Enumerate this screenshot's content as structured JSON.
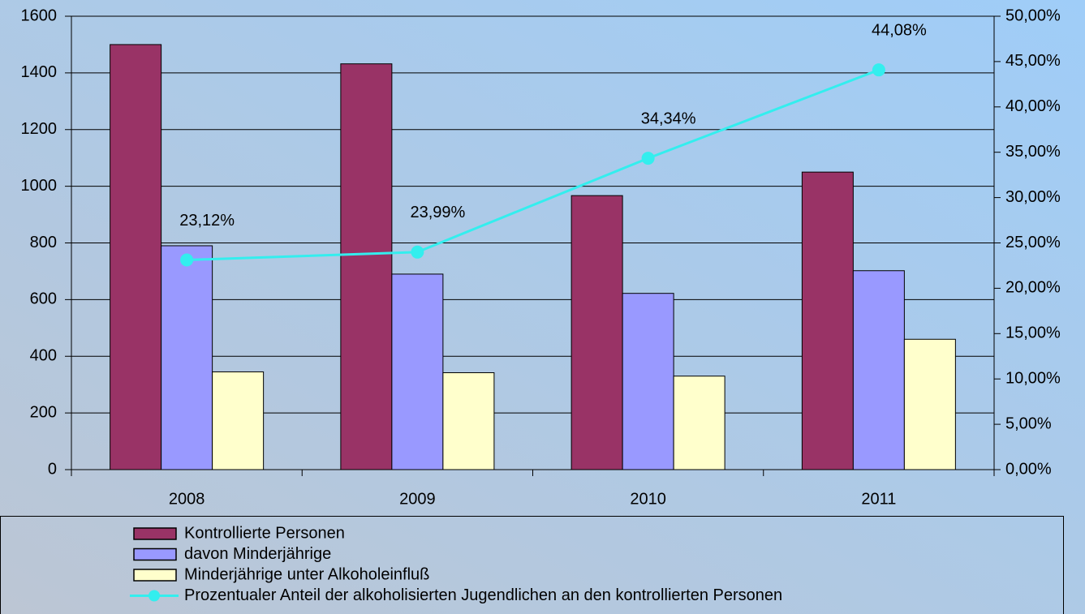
{
  "chart_data": {
    "type": "bar",
    "categories": [
      "2008",
      "2009",
      "2010",
      "2011"
    ],
    "series": [
      {
        "name": "Kontrollierte Personen",
        "color": "#993366",
        "values": [
          1500,
          1432,
          967,
          1050
        ]
      },
      {
        "name": "davon Minderjährige",
        "color": "#9999ff",
        "values": [
          790,
          690,
          622,
          702
        ]
      },
      {
        "name": "Minderjährige unter Alkoholeinfluß",
        "color": "#ffffcc",
        "values": [
          345,
          342,
          330,
          460
        ]
      },
      {
        "name": "Prozentualer Anteil der alkoholisierten Jugendlichen an den kontrollierten Personen",
        "color": "#33eeee",
        "type": "line",
        "axis": "y2",
        "values": [
          23.12,
          23.99,
          34.34,
          44.08
        ],
        "value_labels": [
          "23,12%",
          "23,99%",
          "34,34%",
          "44,08%"
        ]
      }
    ],
    "ylim": [
      0,
      1600
    ],
    "yticks": [
      0,
      200,
      400,
      600,
      800,
      1000,
      1200,
      1400,
      1600
    ],
    "y2lim": [
      0,
      50
    ],
    "y2ticks": [
      {
        "value": 0,
        "label": "0,00%"
      },
      {
        "value": 5,
        "label": "5,00%"
      },
      {
        "value": 10,
        "label": "10,00%"
      },
      {
        "value": 15,
        "label": "15,00%"
      },
      {
        "value": 20,
        "label": "20,00%"
      },
      {
        "value": 25,
        "label": "25,00%"
      },
      {
        "value": 30,
        "label": "30,00%"
      },
      {
        "value": 35,
        "label": "35,00%"
      },
      {
        "value": 40,
        "label": "40,00%"
      },
      {
        "value": 45,
        "label": "45,00%"
      },
      {
        "value": 50,
        "label": "50,00%"
      }
    ],
    "grid": true,
    "legend": "bottom"
  }
}
